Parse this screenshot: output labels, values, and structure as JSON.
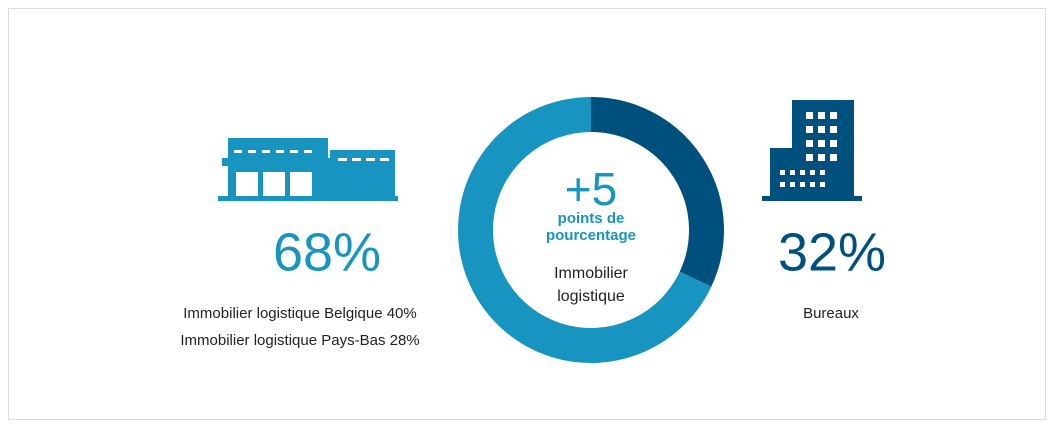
{
  "chart_data": {
    "type": "donut",
    "values": [
      68,
      32
    ],
    "value_labels": [
      "68%",
      "32%"
    ],
    "colors": [
      "#1794bf",
      "#00507e"
    ],
    "descriptions": [
      [
        "Immobilier logistique Belgique 40%",
        "Immobilier logistique Pays-Bas 28%"
      ],
      [
        "Bureaux"
      ]
    ],
    "annotation": {
      "headline": "+5",
      "subhead": "points de pourcentage",
      "label": "Immobilier logistique"
    }
  }
}
